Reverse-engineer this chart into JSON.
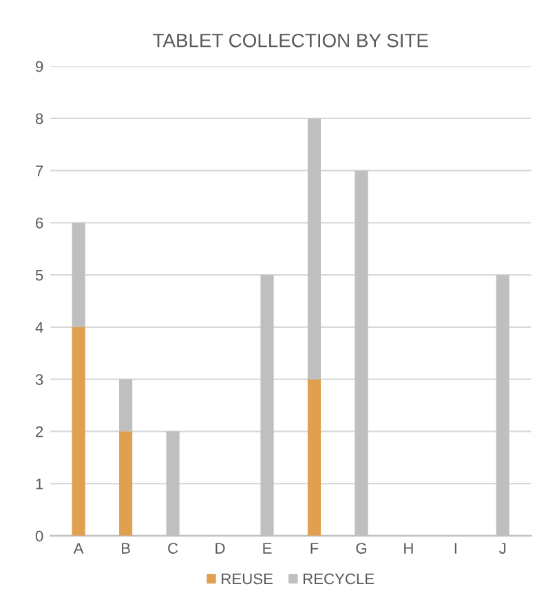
{
  "chart_data": {
    "type": "bar",
    "title": "TABLET COLLECTION BY SITE",
    "stacked": true,
    "categories": [
      "A",
      "B",
      "C",
      "D",
      "E",
      "F",
      "G",
      "H",
      "I",
      "J"
    ],
    "series": [
      {
        "name": "REUSE",
        "color": "#e0a050",
        "values": [
          4,
          2,
          0,
          0,
          0,
          3,
          0,
          0,
          0,
          0
        ]
      },
      {
        "name": "RECYCLE",
        "color": "#bfbfbf",
        "values": [
          2,
          1,
          2,
          0,
          5,
          5,
          7,
          0,
          0,
          5
        ]
      }
    ],
    "ylim": [
      0,
      9
    ],
    "yticks": [
      0,
      1,
      2,
      3,
      4,
      5,
      6,
      7,
      8,
      9
    ],
    "grid": "y",
    "legend": "bottom"
  }
}
